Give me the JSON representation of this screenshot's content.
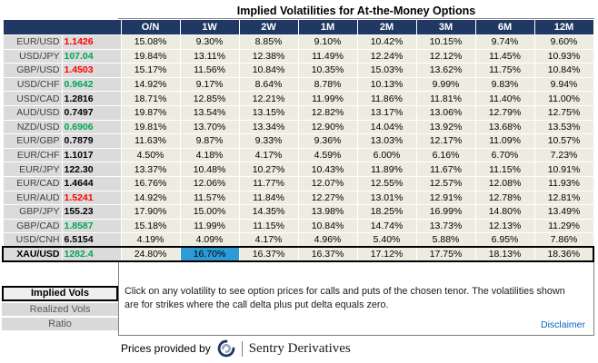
{
  "title": "Implied Volatilities for At-the-Money Options",
  "table": {
    "columns": [
      "O/N",
      "1W",
      "2W",
      "1M",
      "2M",
      "3M",
      "6M",
      "12M"
    ],
    "rows": [
      {
        "pair": "EUR/USD",
        "rate": "1.1426",
        "rate_color": "red",
        "values": [
          "15.08%",
          "9.30%",
          "8.85%",
          "9.10%",
          "10.42%",
          "10.15%",
          "9.74%",
          "9.60%"
        ]
      },
      {
        "pair": "USD/JPY",
        "rate": "107.04",
        "rate_color": "green",
        "values": [
          "19.84%",
          "13.11%",
          "12.38%",
          "11.49%",
          "12.24%",
          "12.12%",
          "11.45%",
          "10.93%"
        ]
      },
      {
        "pair": "GBP/USD",
        "rate": "1.4503",
        "rate_color": "red",
        "values": [
          "15.17%",
          "11.56%",
          "10.84%",
          "10.35%",
          "15.03%",
          "13.62%",
          "11.75%",
          "10.84%"
        ]
      },
      {
        "pair": "USD/CHF",
        "rate": "0.9642",
        "rate_color": "green",
        "values": [
          "14.92%",
          "9.17%",
          "8.64%",
          "8.78%",
          "10.13%",
          "9.99%",
          "9.83%",
          "9.94%"
        ]
      },
      {
        "pair": "USD/CAD",
        "rate": "1.2816",
        "rate_color": "black",
        "values": [
          "18.71%",
          "12.85%",
          "12.21%",
          "11.99%",
          "11.86%",
          "11.81%",
          "11.40%",
          "11.00%"
        ]
      },
      {
        "pair": "AUD/USD",
        "rate": "0.7497",
        "rate_color": "black",
        "values": [
          "19.87%",
          "13.54%",
          "13.15%",
          "12.82%",
          "13.17%",
          "13.06%",
          "12.79%",
          "12.75%"
        ]
      },
      {
        "pair": "NZD/USD",
        "rate": "0.6906",
        "rate_color": "green",
        "values": [
          "19.81%",
          "13.70%",
          "13.34%",
          "12.90%",
          "14.04%",
          "13.92%",
          "13.68%",
          "13.53%"
        ]
      },
      {
        "pair": "EUR/GBP",
        "rate": "0.7879",
        "rate_color": "black",
        "values": [
          "11.63%",
          "9.87%",
          "9.33%",
          "9.36%",
          "13.03%",
          "12.17%",
          "11.09%",
          "10.57%"
        ]
      },
      {
        "pair": "EUR/CHF",
        "rate": "1.1017",
        "rate_color": "black",
        "values": [
          "4.50%",
          "4.18%",
          "4.17%",
          "4.59%",
          "6.00%",
          "6.16%",
          "6.70%",
          "7.23%"
        ]
      },
      {
        "pair": "EUR/JPY",
        "rate": "122.30",
        "rate_color": "black",
        "values": [
          "13.37%",
          "10.48%",
          "10.27%",
          "10.43%",
          "11.89%",
          "11.67%",
          "11.15%",
          "10.91%"
        ]
      },
      {
        "pair": "EUR/CAD",
        "rate": "1.4644",
        "rate_color": "black",
        "values": [
          "16.76%",
          "12.06%",
          "11.77%",
          "12.07%",
          "12.55%",
          "12.57%",
          "12.08%",
          "11.93%"
        ]
      },
      {
        "pair": "EUR/AUD",
        "rate": "1.5241",
        "rate_color": "red",
        "values": [
          "14.92%",
          "11.57%",
          "11.84%",
          "12.27%",
          "13.01%",
          "12.91%",
          "12.78%",
          "12.81%"
        ]
      },
      {
        "pair": "GBP/JPY",
        "rate": "155.23",
        "rate_color": "black",
        "values": [
          "17.90%",
          "15.00%",
          "14.35%",
          "13.98%",
          "18.25%",
          "16.99%",
          "14.80%",
          "13.49%"
        ]
      },
      {
        "pair": "GBP/CAD",
        "rate": "1.8587",
        "rate_color": "green",
        "values": [
          "15.18%",
          "11.99%",
          "11.15%",
          "10.84%",
          "14.74%",
          "13.73%",
          "12.13%",
          "11.29%"
        ]
      },
      {
        "pair": "USD/CNH",
        "rate": "6.5154",
        "rate_color": "black",
        "values": [
          "4.19%",
          "4.09%",
          "4.17%",
          "4.96%",
          "5.40%",
          "5.88%",
          "6.95%",
          "7.86%"
        ]
      },
      {
        "pair": "XAU/USD",
        "rate": "1282.4",
        "rate_color": "green",
        "values": [
          "24.80%",
          "16.70%",
          "16.37%",
          "16.37%",
          "17.12%",
          "17.75%",
          "18.13%",
          "18.36%"
        ]
      }
    ],
    "selected": {
      "pair": "XAU/USD",
      "column": "1W"
    }
  },
  "tabs": [
    {
      "label": "Implied Vols",
      "active": true
    },
    {
      "label": "Realized Vols",
      "active": false
    },
    {
      "label": "Ratio",
      "active": false
    }
  ],
  "note": "Click on any volatility to see option prices for calls and puts of the chosen tenor. The volatilities shown are for strikes where the call delta plus put delta equals zero.",
  "disclaimer_label": "Disclaimer",
  "footer": {
    "prefix": "Prices provided by",
    "brand": "Sentry Derivatives"
  },
  "colors": {
    "header_bg": "#1F3864",
    "cell_bg": "#EEECE1",
    "pair_col_bg": "#DBDBDB",
    "selected_cell_bg": "#2E9BD5",
    "rate_up": "#00A651",
    "rate_down": "#FF0000",
    "link": "#0563C1"
  }
}
